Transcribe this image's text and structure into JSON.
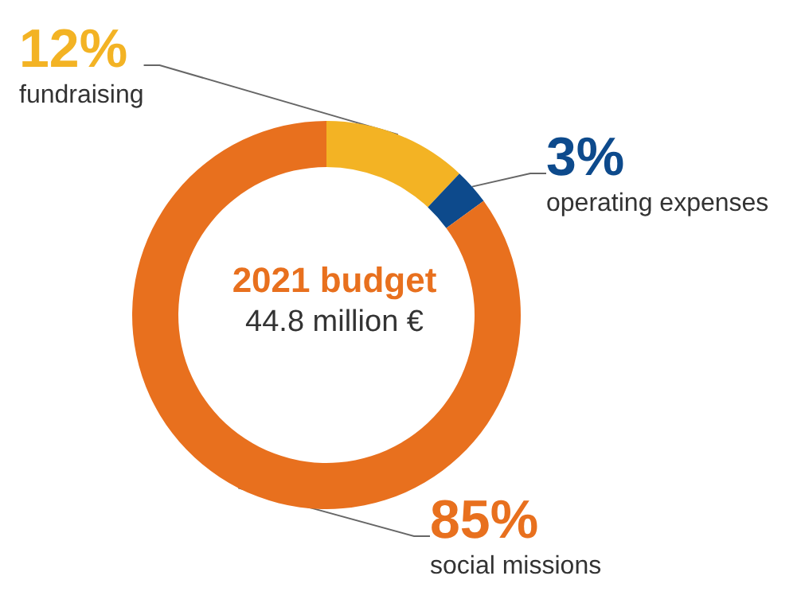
{
  "chart_data": {
    "type": "donut",
    "title": "2021 budget",
    "subtitle": "44.8 million €",
    "categories": [
      "fundraising",
      "operating expenses",
      "social missions"
    ],
    "values": [
      12,
      3,
      85
    ],
    "value_labels": [
      "12%",
      "3%",
      "85%"
    ],
    "colors": [
      "#f3b324",
      "#0d4a8c",
      "#e8701e"
    ],
    "data_labels": true,
    "legend": false
  }
}
